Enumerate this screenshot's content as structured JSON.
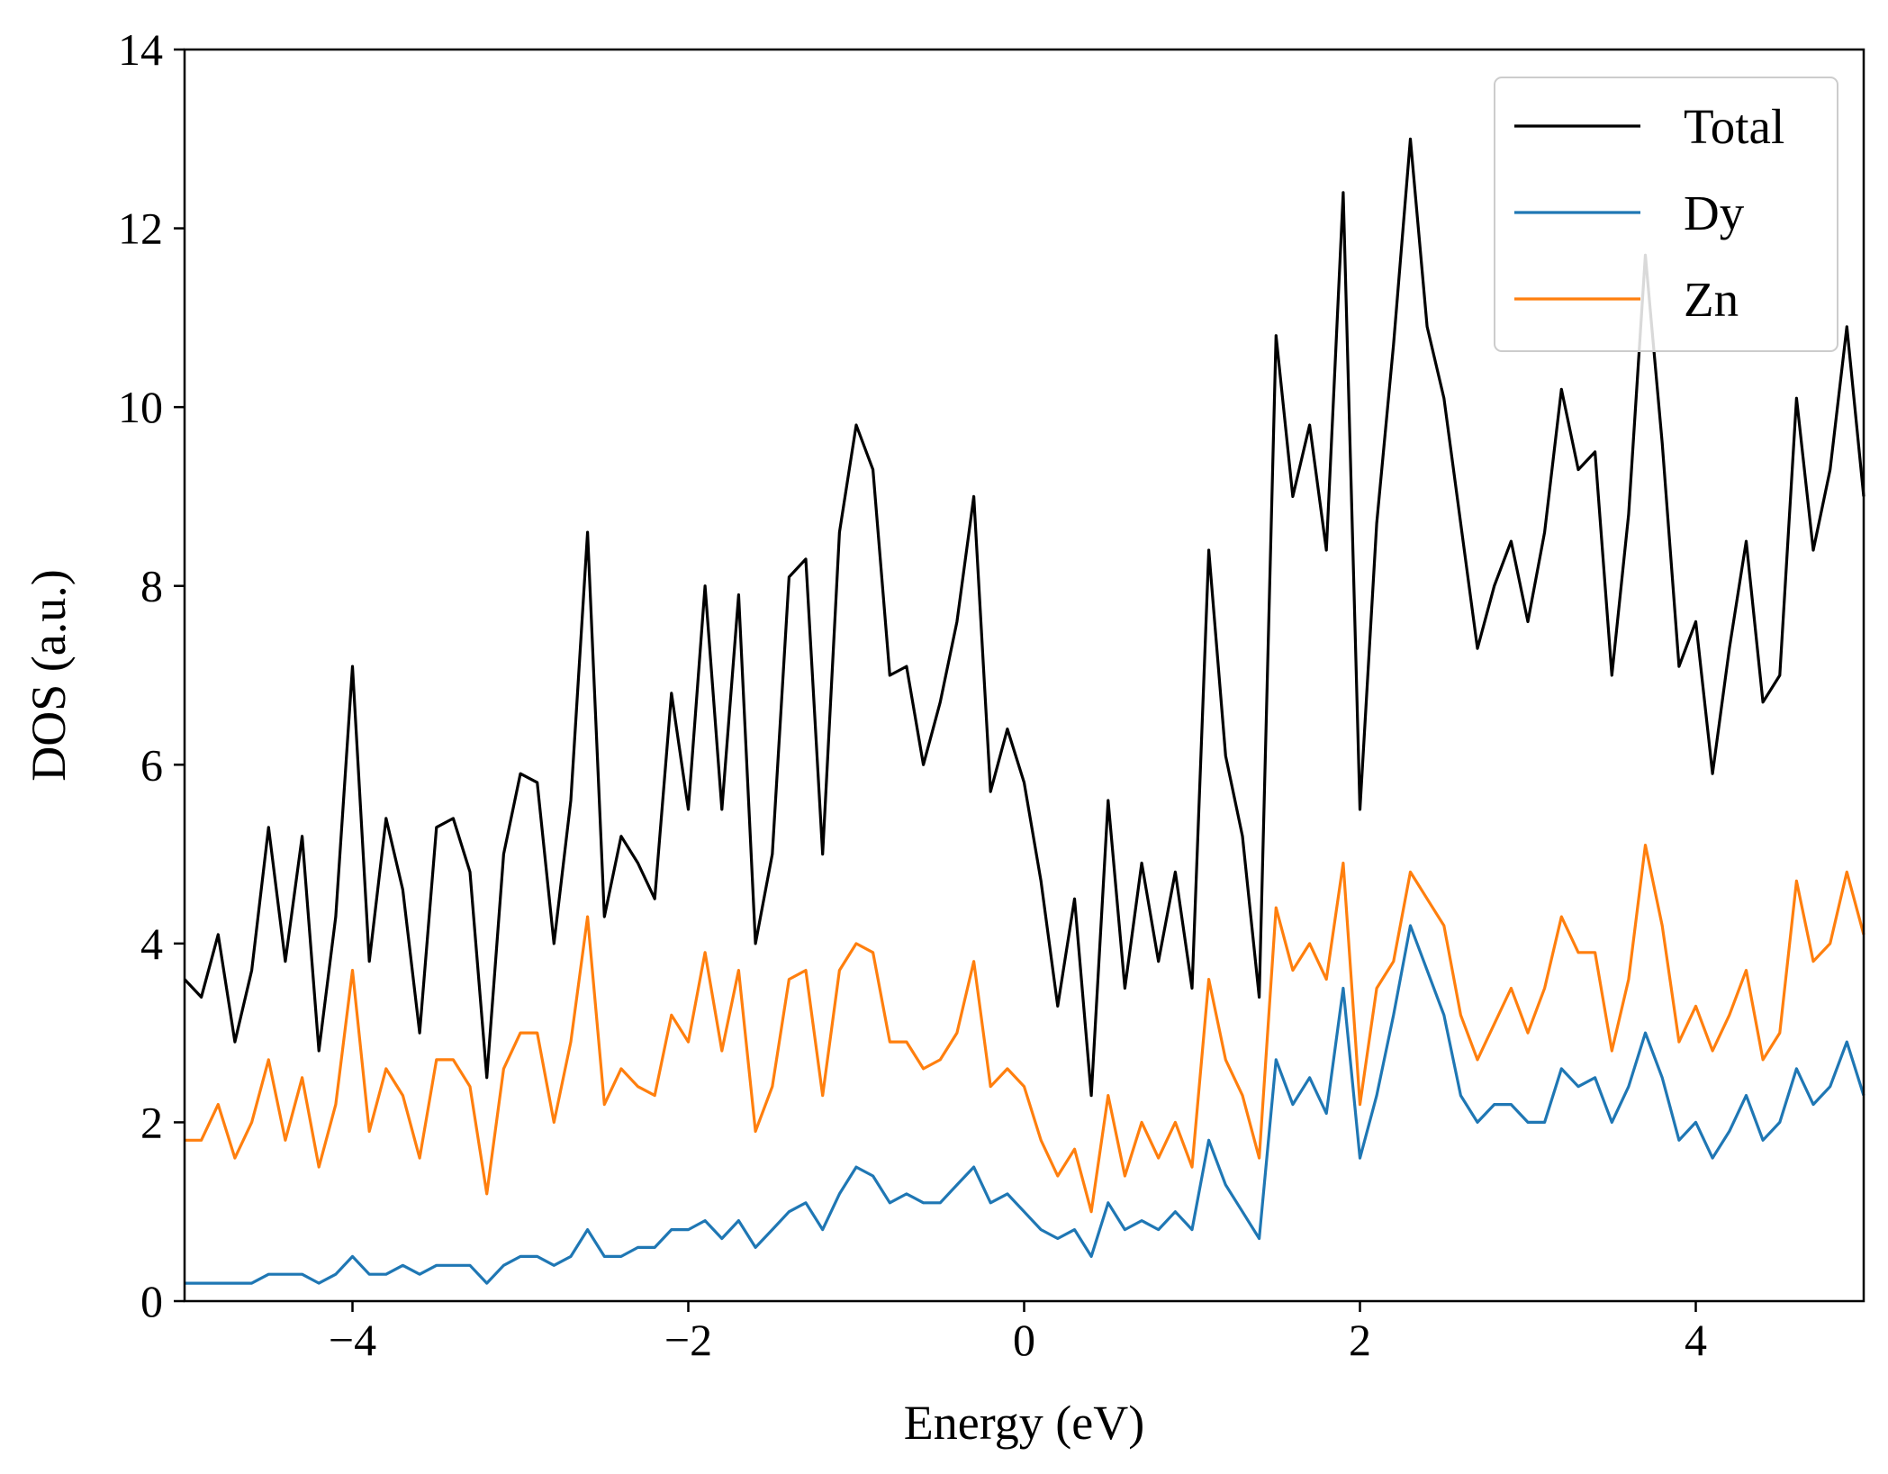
{
  "chart_data": {
    "type": "line",
    "title": "",
    "xlabel": "Energy (eV)",
    "ylabel": "DOS (a.u.)",
    "xlim": [
      -5,
      5
    ],
    "ylim": [
      0,
      14
    ],
    "xticks": [
      -4,
      -2,
      0,
      2,
      4
    ],
    "xtick_labels": [
      "−4",
      "−2",
      "0",
      "2",
      "4"
    ],
    "yticks": [
      0,
      2,
      4,
      6,
      8,
      10,
      12,
      14
    ],
    "ytick_labels": [
      "0",
      "2",
      "4",
      "6",
      "8",
      "10",
      "12",
      "14"
    ],
    "grid": false,
    "legend_position": "top-right",
    "x": [
      -5.0,
      -4.9,
      -4.8,
      -4.7,
      -4.6,
      -4.5,
      -4.4,
      -4.3,
      -4.2,
      -4.1,
      -4.0,
      -3.9,
      -3.8,
      -3.7,
      -3.6,
      -3.5,
      -3.4,
      -3.3,
      -3.2,
      -3.1,
      -3.0,
      -2.9,
      -2.8,
      -2.7,
      -2.6,
      -2.5,
      -2.4,
      -2.3,
      -2.2,
      -2.1,
      -2.0,
      -1.9,
      -1.8,
      -1.7,
      -1.6,
      -1.5,
      -1.4,
      -1.3,
      -1.2,
      -1.1,
      -1.0,
      -0.9,
      -0.8,
      -0.7,
      -0.6,
      -0.5,
      -0.4,
      -0.3,
      -0.2,
      -0.1,
      0.0,
      0.1,
      0.2,
      0.3,
      0.4,
      0.5,
      0.6,
      0.7,
      0.8,
      0.9,
      1.0,
      1.1,
      1.2,
      1.3,
      1.4,
      1.5,
      1.6,
      1.7,
      1.8,
      1.9,
      2.0,
      2.1,
      2.2,
      2.3,
      2.4,
      2.5,
      2.6,
      2.7,
      2.8,
      2.9,
      3.0,
      3.1,
      3.2,
      3.3,
      3.4,
      3.5,
      3.6,
      3.7,
      3.8,
      3.9,
      4.0,
      4.1,
      4.2,
      4.3,
      4.4,
      4.5,
      4.6,
      4.7,
      4.8,
      4.9,
      5.0
    ],
    "series": [
      {
        "name": "Total",
        "color": "#000000",
        "values": [
          3.6,
          3.4,
          4.1,
          2.9,
          3.7,
          5.3,
          3.8,
          5.2,
          2.8,
          4.3,
          7.1,
          3.8,
          5.4,
          4.6,
          3.0,
          5.3,
          5.4,
          4.8,
          2.5,
          5.0,
          5.9,
          5.8,
          4.0,
          5.6,
          8.6,
          4.3,
          5.2,
          4.9,
          4.5,
          6.8,
          5.5,
          8.0,
          5.5,
          7.9,
          4.0,
          5.0,
          8.1,
          8.3,
          5.0,
          8.6,
          9.8,
          9.3,
          7.0,
          7.1,
          6.0,
          6.7,
          7.6,
          9.0,
          5.7,
          6.4,
          5.8,
          4.7,
          3.3,
          4.5,
          2.3,
          5.6,
          3.5,
          4.9,
          3.8,
          4.8,
          3.5,
          8.4,
          6.1,
          5.2,
          3.4,
          10.8,
          9.0,
          9.8,
          8.4,
          12.4,
          5.5,
          8.7,
          10.7,
          13.0,
          10.9,
          10.1,
          8.7,
          7.3,
          8.0,
          8.5,
          7.6,
          8.6,
          10.2,
          9.3,
          9.5,
          7.0,
          8.8,
          11.7,
          9.6,
          7.1,
          7.6,
          5.9,
          7.3,
          8.5,
          6.7,
          7.0,
          10.1,
          8.4,
          9.3,
          10.9,
          9.0
        ]
      },
      {
        "name": "Dy",
        "color": "#1f77b4",
        "values": [
          0.2,
          0.2,
          0.2,
          0.2,
          0.2,
          0.3,
          0.3,
          0.3,
          0.2,
          0.3,
          0.5,
          0.3,
          0.3,
          0.4,
          0.3,
          0.4,
          0.4,
          0.4,
          0.2,
          0.4,
          0.5,
          0.5,
          0.4,
          0.5,
          0.8,
          0.5,
          0.5,
          0.6,
          0.6,
          0.8,
          0.8,
          0.9,
          0.7,
          0.9,
          0.6,
          0.8,
          1.0,
          1.1,
          0.8,
          1.2,
          1.5,
          1.4,
          1.1,
          1.2,
          1.1,
          1.1,
          1.3,
          1.5,
          1.1,
          1.2,
          1.0,
          0.8,
          0.7,
          0.8,
          0.5,
          1.1,
          0.8,
          0.9,
          0.8,
          1.0,
          0.8,
          1.8,
          1.3,
          1.0,
          0.7,
          2.7,
          2.2,
          2.5,
          2.1,
          3.5,
          1.6,
          2.3,
          3.2,
          4.2,
          3.7,
          3.2,
          2.3,
          2.0,
          2.2,
          2.2,
          2.0,
          2.0,
          2.6,
          2.4,
          2.5,
          2.0,
          2.4,
          3.0,
          2.5,
          1.8,
          2.0,
          1.6,
          1.9,
          2.3,
          1.8,
          2.0,
          2.6,
          2.2,
          2.4,
          2.9,
          2.3
        ]
      },
      {
        "name": "Zn",
        "color": "#ff7f0e",
        "values": [
          1.8,
          1.8,
          2.2,
          1.6,
          2.0,
          2.7,
          1.8,
          2.5,
          1.5,
          2.2,
          3.7,
          1.9,
          2.6,
          2.3,
          1.6,
          2.7,
          2.7,
          2.4,
          1.2,
          2.6,
          3.0,
          3.0,
          2.0,
          2.9,
          4.3,
          2.2,
          2.6,
          2.4,
          2.3,
          3.2,
          2.9,
          3.9,
          2.8,
          3.7,
          1.9,
          2.4,
          3.6,
          3.7,
          2.3,
          3.7,
          4.0,
          3.9,
          2.9,
          2.9,
          2.6,
          2.7,
          3.0,
          3.8,
          2.4,
          2.6,
          2.4,
          1.8,
          1.4,
          1.7,
          1.0,
          2.3,
          1.4,
          2.0,
          1.6,
          2.0,
          1.5,
          3.6,
          2.7,
          2.3,
          1.6,
          4.4,
          3.7,
          4.0,
          3.6,
          4.9,
          2.2,
          3.5,
          3.8,
          4.8,
          4.5,
          4.2,
          3.2,
          2.7,
          3.1,
          3.5,
          3.0,
          3.5,
          4.3,
          3.9,
          3.9,
          2.8,
          3.6,
          5.1,
          4.2,
          2.9,
          3.3,
          2.8,
          3.2,
          3.7,
          2.7,
          3.0,
          4.7,
          3.8,
          4.0,
          4.8,
          4.1
        ]
      }
    ]
  }
}
